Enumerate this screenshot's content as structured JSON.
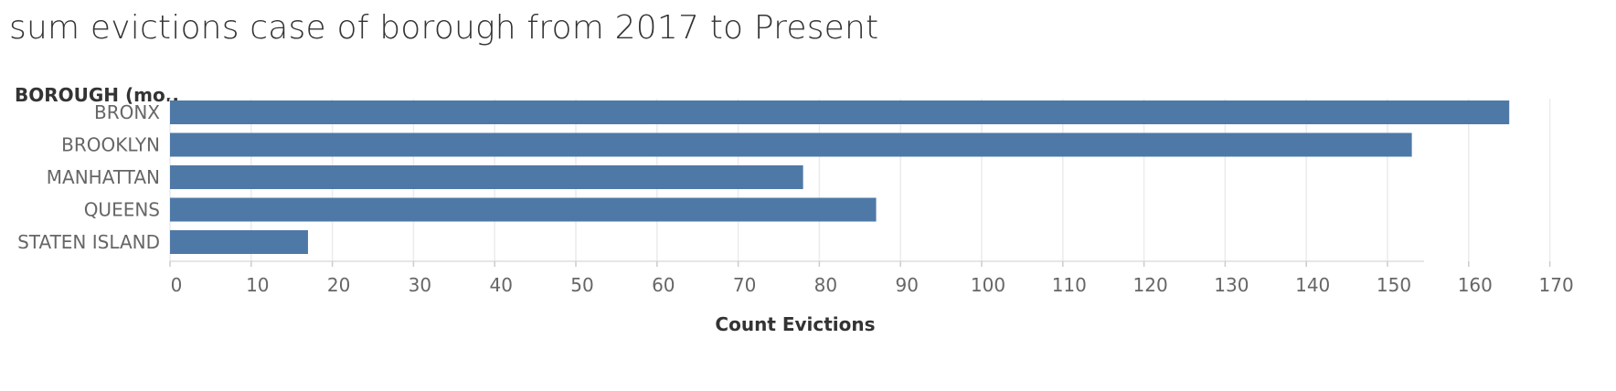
{
  "chart_data": {
    "type": "bar",
    "orientation": "horizontal",
    "title": "sum evictions case of borough from 2017 to Present",
    "row_header": "BOROUGH (mo..",
    "xlabel": "Count Evictions",
    "categories": [
      "BRONX",
      "BROOKLYN",
      "MANHATTAN",
      "QUEENS",
      "STATEN ISLAND"
    ],
    "values": [
      165,
      153,
      78,
      87,
      17
    ],
    "xlim": [
      0,
      174
    ],
    "ticks": [
      0,
      10,
      20,
      30,
      40,
      50,
      60,
      70,
      80,
      90,
      100,
      110,
      120,
      130,
      140,
      150,
      160,
      170
    ],
    "grid": true,
    "bar_color": "#4e79a7",
    "grid_color": "#ececec"
  }
}
